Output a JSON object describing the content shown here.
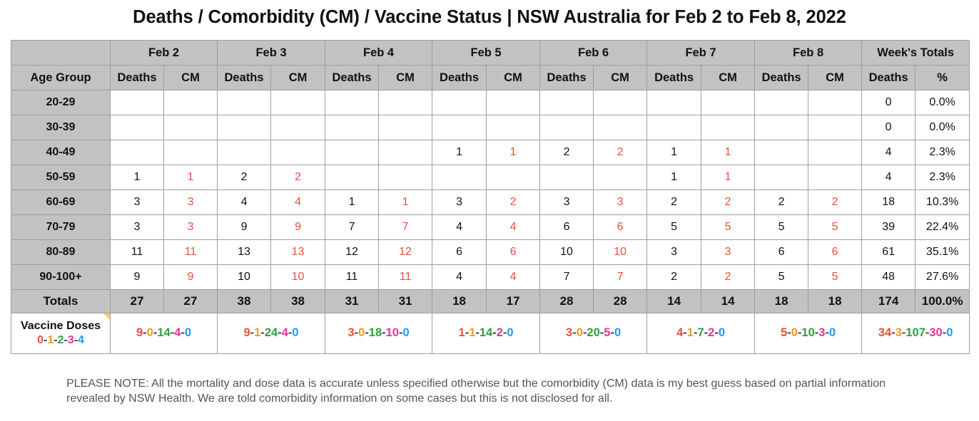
{
  "title": "Deaths / Comorbidity (CM) / Vaccine Status | NSW Australia for Feb 2 to Feb 8, 2022",
  "header": {
    "days": [
      "Feb 2",
      "Feb 3",
      "Feb 4",
      "Feb 5",
      "Feb 6",
      "Feb 7",
      "Feb 8"
    ],
    "totals_label": "Week's Totals",
    "age_group_label": "Age Group",
    "deaths_label": "Deaths",
    "cm_label": "CM",
    "pct_label": "%"
  },
  "rows": [
    {
      "age": "20-29",
      "days": [
        [
          "",
          ""
        ],
        [
          "",
          ""
        ],
        [
          "",
          ""
        ],
        [
          "",
          ""
        ],
        [
          "",
          ""
        ],
        [
          "",
          ""
        ],
        [
          "",
          ""
        ]
      ],
      "total": "0",
      "pct": "0.0%"
    },
    {
      "age": "30-39",
      "days": [
        [
          "",
          ""
        ],
        [
          "",
          ""
        ],
        [
          "",
          ""
        ],
        [
          "",
          ""
        ],
        [
          "",
          ""
        ],
        [
          "",
          ""
        ],
        [
          "",
          ""
        ]
      ],
      "total": "0",
      "pct": "0.0%"
    },
    {
      "age": "40-49",
      "days": [
        [
          "",
          ""
        ],
        [
          "",
          ""
        ],
        [
          "",
          ""
        ],
        [
          "1",
          "1"
        ],
        [
          "2",
          "2"
        ],
        [
          "1",
          "1"
        ],
        [
          "",
          ""
        ]
      ],
      "total": "4",
      "pct": "2.3%"
    },
    {
      "age": "50-59",
      "days": [
        [
          "1",
          "1"
        ],
        [
          "2",
          "2"
        ],
        [
          "",
          ""
        ],
        [
          "",
          ""
        ],
        [
          "",
          ""
        ],
        [
          "1",
          "1"
        ],
        [
          "",
          ""
        ]
      ],
      "total": "4",
      "pct": "2.3%"
    },
    {
      "age": "60-69",
      "days": [
        [
          "3",
          "3"
        ],
        [
          "4",
          "4"
        ],
        [
          "1",
          "1"
        ],
        [
          "3",
          "2"
        ],
        [
          "3",
          "3"
        ],
        [
          "2",
          "2"
        ],
        [
          "2",
          "2"
        ]
      ],
      "total": "18",
      "pct": "10.3%"
    },
    {
      "age": "70-79",
      "days": [
        [
          "3",
          "3"
        ],
        [
          "9",
          "9"
        ],
        [
          "7",
          "7"
        ],
        [
          "4",
          "4"
        ],
        [
          "6",
          "6"
        ],
        [
          "5",
          "5"
        ],
        [
          "5",
          "5"
        ]
      ],
      "total": "39",
      "pct": "22.4%"
    },
    {
      "age": "80-89",
      "days": [
        [
          "11",
          "11"
        ],
        [
          "13",
          "13"
        ],
        [
          "12",
          "12"
        ],
        [
          "6",
          "6"
        ],
        [
          "10",
          "10"
        ],
        [
          "3",
          "3"
        ],
        [
          "6",
          "6"
        ]
      ],
      "total": "61",
      "pct": "35.1%"
    },
    {
      "age": "90-100+",
      "days": [
        [
          "9",
          "9"
        ],
        [
          "10",
          "10"
        ],
        [
          "11",
          "11"
        ],
        [
          "4",
          "4"
        ],
        [
          "7",
          "7"
        ],
        [
          "2",
          "2"
        ],
        [
          "5",
          "5"
        ]
      ],
      "total": "48",
      "pct": "27.6%"
    }
  ],
  "totals": {
    "label": "Totals",
    "days": [
      [
        "27",
        "27"
      ],
      [
        "38",
        "38"
      ],
      [
        "31",
        "31"
      ],
      [
        "18",
        "17"
      ],
      [
        "28",
        "28"
      ],
      [
        "14",
        "14"
      ],
      [
        "18",
        "18"
      ]
    ],
    "total": "174",
    "pct": "100.0%"
  },
  "vaccine": {
    "label": "Vaccine Doses",
    "key": [
      "0",
      "1",
      "2",
      "3",
      "4"
    ],
    "days": [
      [
        "9",
        "0",
        "14",
        "4",
        "0"
      ],
      [
        "9",
        "1",
        "24",
        "4",
        "0"
      ],
      [
        "3",
        "0",
        "18",
        "10",
        "0"
      ],
      [
        "1",
        "1",
        "14",
        "2",
        "0"
      ],
      [
        "3",
        "0",
        "20",
        "5",
        "0"
      ],
      [
        "4",
        "1",
        "7",
        "2",
        "0"
      ],
      [
        "5",
        "0",
        "10",
        "3",
        "0"
      ]
    ],
    "week": [
      "34",
      "3",
      "107",
      "30",
      "0"
    ],
    "dose_colors": [
      "#e8503c",
      "#f29a1f",
      "#2da13b",
      "#e6329c",
      "#1e9bf0"
    ]
  },
  "note": "PLEASE NOTE: All the mortality and dose data is accurate unless specified otherwise but the comorbidity (CM) data is my best guess based on partial information revealed by NSW Health. We are told comorbidity information on some cases but this is not disclosed for all."
}
